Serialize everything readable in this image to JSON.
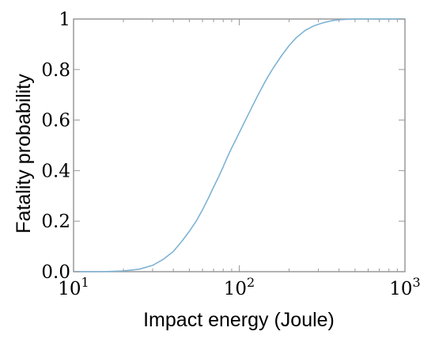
{
  "chart_data": {
    "type": "line",
    "title": "",
    "xlabel": "Impact energy (Joule)",
    "ylabel": "Fatality probability",
    "xscale": "log",
    "xlim": [
      10,
      1000
    ],
    "ylim": [
      0,
      1
    ],
    "grid": false,
    "legend": "none",
    "line_color": "#7fb3d5",
    "x_ticks": [
      {
        "base": "10",
        "exp": "1"
      },
      {
        "base": "10",
        "exp": "2"
      },
      {
        "base": "10",
        "exp": "3"
      }
    ],
    "y_tick_values": [
      0,
      0.2,
      0.4,
      0.6,
      0.8,
      1
    ],
    "y_tick_labels": [
      "0.0",
      "0.2",
      "0.4",
      "0.6",
      "0.8",
      "1"
    ],
    "series": [
      {
        "x": [
          10,
          15,
          20,
          25,
          30,
          35,
          40,
          45,
          50,
          55,
          60,
          65,
          70,
          75,
          80,
          85,
          90,
          95,
          100,
          110,
          120,
          130,
          140,
          150,
          160,
          180,
          200,
          220,
          250,
          280,
          320,
          360,
          400,
          450,
          500,
          600,
          700,
          800,
          900,
          1000
        ],
        "y": [
          0.0,
          0.0,
          0.003,
          0.01,
          0.025,
          0.05,
          0.08,
          0.12,
          0.16,
          0.2,
          0.245,
          0.29,
          0.335,
          0.375,
          0.415,
          0.455,
          0.49,
          0.52,
          0.55,
          0.605,
          0.655,
          0.7,
          0.74,
          0.775,
          0.805,
          0.855,
          0.895,
          0.925,
          0.955,
          0.972,
          0.985,
          0.993,
          0.997,
          0.999,
          1.0,
          1.0,
          1.0,
          1.0,
          1.0,
          1.0
        ]
      }
    ]
  }
}
